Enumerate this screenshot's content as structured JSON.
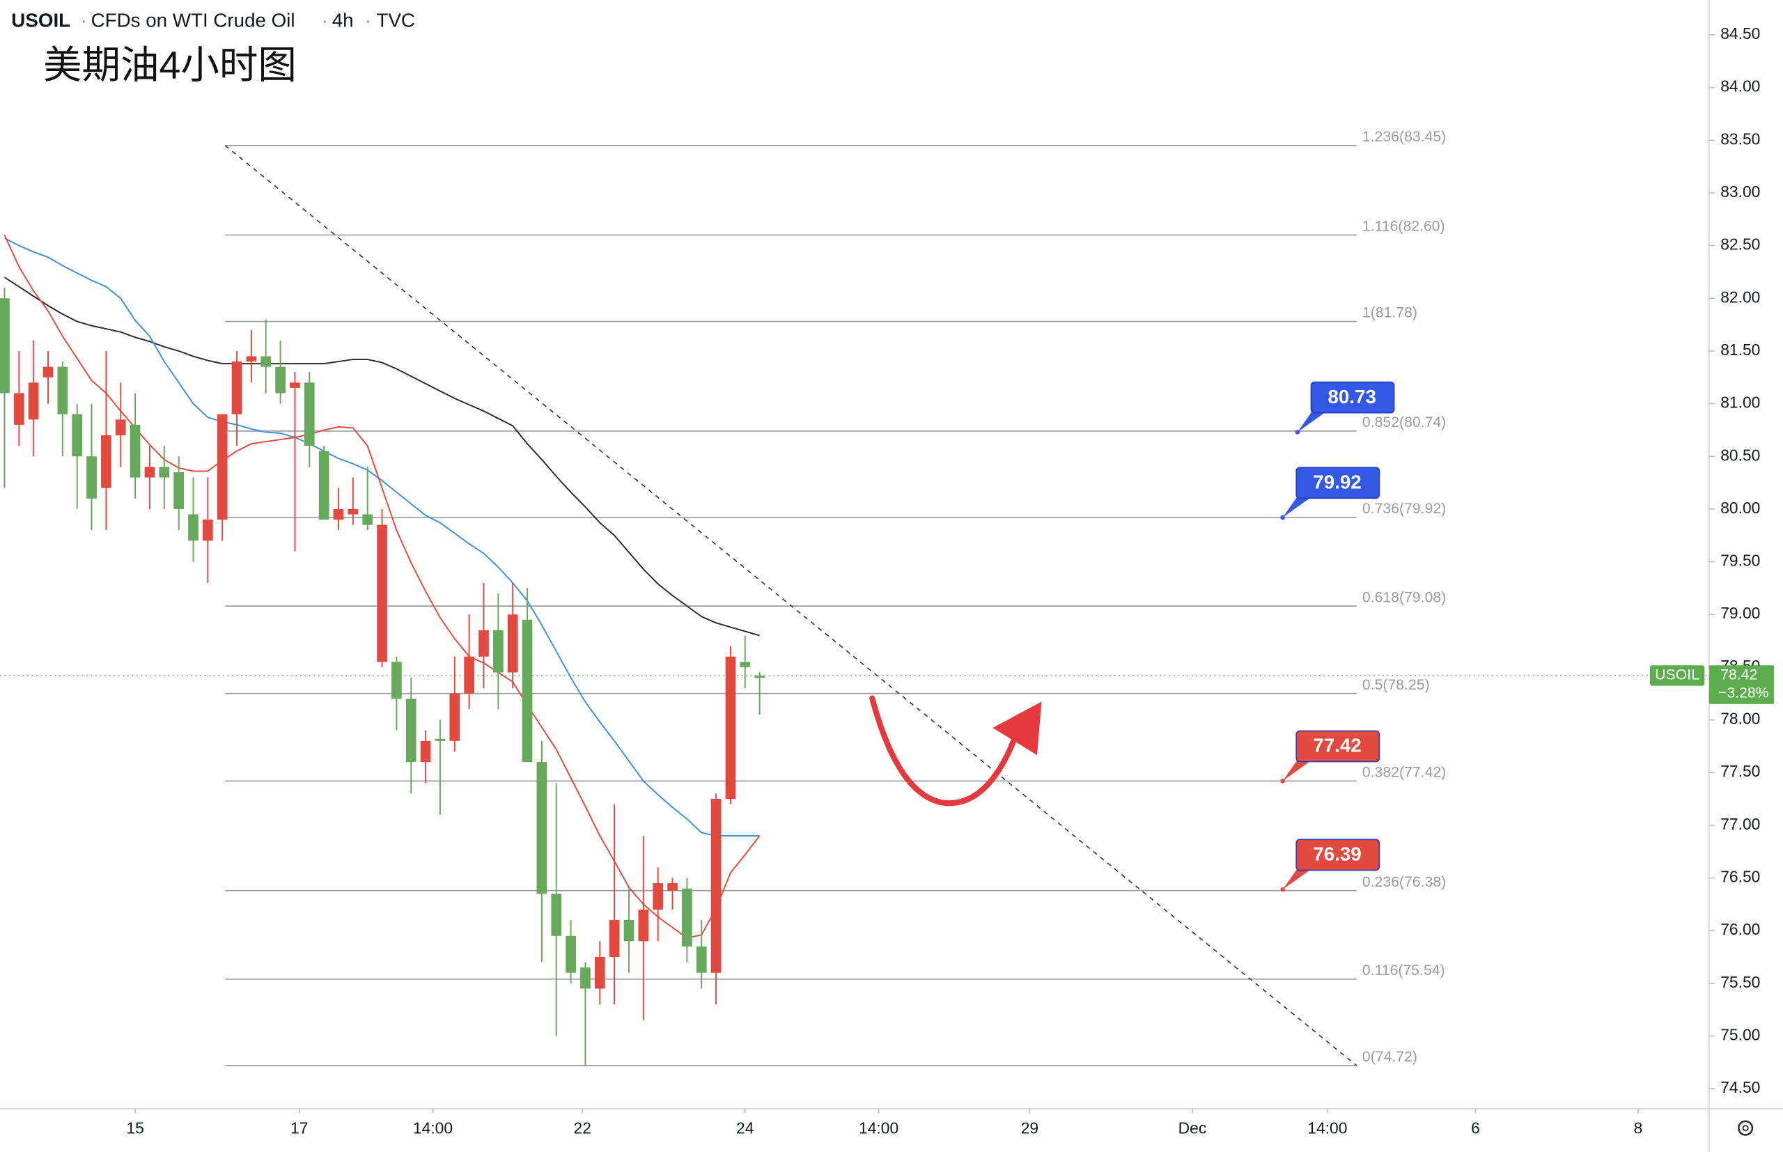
{
  "chart_data": {
    "type": "candlestick",
    "header": {
      "symbol": "USOIL",
      "separator": "·",
      "description": "CFDs on WTI Crude Oil",
      "interval": "4h",
      "source": "TVC"
    },
    "title": "美期油4小时图",
    "up_color": "#66a95a",
    "down_color": "#e34a3f",
    "open": [
      81.1,
      81.1,
      81.2,
      81.35,
      80.9,
      80.5,
      80.1,
      80.7,
      80.85,
      80.3,
      80.4,
      80.3,
      80.0,
      79.7,
      79.9,
      80.9,
      81.4,
      81.45,
      81.35,
      81.1,
      81.2,
      80.6,
      79.9,
      80.0,
      80.0,
      79.85,
      79.85,
      78.2,
      77.6,
      77.8,
      77.8,
      78.25,
      78.6,
      78.85,
      78.45,
      79.0,
      77.6,
      76.35,
      75.95,
      75.6,
      75.45,
      75.75,
      76.1,
      75.9,
      76.2,
      76.45,
      76.45,
      75.85,
      75.6,
      77.25,
      78.6,
      78.5,
      78.4
    ],
    "high": [
      82.1,
      81.5,
      81.6,
      81.5,
      81.4,
      81.0,
      81.0,
      81.5,
      81.2,
      81.1,
      80.6,
      80.6,
      80.5,
      80.3,
      80.3,
      80.9,
      81.5,
      81.7,
      81.8,
      81.6,
      81.3,
      81.3,
      80.6,
      80.2,
      80.3,
      80.4,
      80.0,
      78.6,
      78.4,
      77.9,
      78.0,
      78.6,
      79.0,
      79.3,
      79.2,
      79.3,
      79.25,
      77.8,
      77.4,
      76.1,
      75.7,
      75.9,
      77.2,
      76.4,
      76.9,
      76.6,
      76.5,
      76.5,
      76.1,
      77.3,
      78.7,
      78.8,
      78.45
    ],
    "low": [
      80.2,
      80.6,
      80.5,
      81.0,
      80.5,
      80.0,
      79.8,
      79.8,
      80.4,
      80.1,
      80.0,
      80.0,
      79.8,
      79.5,
      79.3,
      79.7,
      80.6,
      81.2,
      81.1,
      81.0,
      79.6,
      80.4,
      79.9,
      79.8,
      79.85,
      79.8,
      78.5,
      77.9,
      77.3,
      77.4,
      77.1,
      77.7,
      78.1,
      78.3,
      78.1,
      78.3,
      77.6,
      75.7,
      75.0,
      75.5,
      74.72,
      75.3,
      75.3,
      75.6,
      75.15,
      75.9,
      76.2,
      75.7,
      75.45,
      75.3,
      77.2,
      78.3,
      78.05
    ],
    "close": [
      82.0,
      80.8,
      80.85,
      81.25,
      81.35,
      80.9,
      80.5,
      80.2,
      80.7,
      80.8,
      80.3,
      80.4,
      80.35,
      79.95,
      79.7,
      79.9,
      80.9,
      81.4,
      81.45,
      81.35,
      81.15,
      81.2,
      80.55,
      79.9,
      79.95,
      79.95,
      78.55,
      78.55,
      78.2,
      77.6,
      77.82,
      77.8,
      78.25,
      78.6,
      78.85,
      78.45,
      78.95,
      77.6,
      76.35,
      75.95,
      75.65,
      75.45,
      75.75,
      76.1,
      75.9,
      76.2,
      76.38,
      76.4,
      75.85,
      75.6,
      77.25,
      78.55,
      78.42
    ],
    "series": [
      {
        "color": "#2b2b2b",
        "values": [
          82.2,
          82.11,
          82.02,
          81.93,
          81.85,
          81.78,
          81.74,
          81.71,
          81.68,
          81.63,
          81.59,
          81.54,
          81.5,
          81.45,
          81.41,
          81.38,
          81.38,
          81.38,
          81.38,
          81.38,
          81.38,
          81.38,
          81.38,
          81.4,
          81.42,
          81.42,
          81.39,
          81.33,
          81.26,
          81.19,
          81.12,
          81.05,
          80.99,
          80.93,
          80.86,
          80.79,
          80.62,
          80.47,
          80.31,
          80.16,
          80.02,
          79.87,
          79.75,
          79.59,
          79.43,
          79.29,
          79.18,
          79.08,
          78.98,
          78.92,
          78.88,
          78.84,
          78.8
        ]
      },
      {
        "color": "#3d8fe0",
        "values": [
          82.57,
          82.5,
          82.44,
          82.39,
          82.31,
          82.24,
          82.17,
          82.11,
          82.0,
          81.79,
          81.64,
          81.4,
          81.2,
          81.0,
          80.87,
          80.83,
          80.8,
          80.76,
          80.73,
          80.72,
          80.68,
          80.62,
          80.55,
          80.48,
          80.43,
          80.37,
          80.27,
          80.16,
          80.05,
          79.94,
          79.87,
          79.77,
          79.67,
          79.58,
          79.45,
          79.3,
          79.13,
          78.9,
          78.65,
          78.4,
          78.17,
          77.98,
          77.8,
          77.61,
          77.42,
          77.29,
          77.17,
          77.06,
          76.93,
          76.9,
          76.9,
          76.9,
          76.9
        ]
      },
      {
        "color": "#e34a3f",
        "values": [
          82.6,
          82.3,
          82.07,
          81.88,
          81.64,
          81.43,
          81.22,
          81.1,
          80.93,
          80.77,
          80.61,
          80.47,
          80.39,
          80.36,
          80.36,
          80.46,
          80.55,
          80.62,
          80.64,
          80.66,
          80.68,
          80.71,
          80.75,
          80.78,
          80.77,
          80.6,
          80.2,
          79.8,
          79.49,
          79.22,
          78.97,
          78.77,
          78.6,
          78.54,
          78.45,
          78.36,
          78.14,
          77.93,
          77.72,
          77.45,
          77.18,
          76.9,
          76.66,
          76.41,
          76.25,
          76.13,
          76.03,
          75.93,
          75.96,
          76.21,
          76.55,
          76.72,
          76.9
        ]
      }
    ],
    "fib_color": "#9a9a9a",
    "fib_levels": [
      {
        "value": 83.45,
        "label": "1.236(83.45)"
      },
      {
        "value": 82.6,
        "label": "1.116(82.60)"
      },
      {
        "value": 81.78,
        "label": "1(81.78)"
      },
      {
        "value": 80.74,
        "label": "0.852(80.74)"
      },
      {
        "value": 79.92,
        "label": "0.736(79.92)"
      },
      {
        "value": 79.08,
        "label": "0.618(79.08)"
      },
      {
        "value": 78.25,
        "label": "0.5(78.25)"
      },
      {
        "value": 77.42,
        "label": "0.382(77.42)"
      },
      {
        "value": 76.38,
        "label": "0.236(76.38)"
      },
      {
        "value": 75.54,
        "label": "0.116(75.54)"
      },
      {
        "value": 74.72,
        "label": "0(74.72)"
      }
    ],
    "callouts": [
      {
        "value": 80.73,
        "color": "#3458e6"
      },
      {
        "value": 79.92,
        "color": "#3458e6"
      },
      {
        "value": 77.42,
        "color": "#e34a3f"
      },
      {
        "value": 76.39,
        "color": "#e34a3f"
      }
    ],
    "last": {
      "label": "USOIL",
      "value": 78.42,
      "change": {
        "value": -3.28,
        "label": "−3.28%"
      },
      "color": "#5cad4e"
    },
    "ylim": [
      74.31,
      84.83
    ],
    "yticks": [
      {
        "value": 74.5,
        "label": "74.50"
      },
      {
        "value": 75,
        "label": "75.00"
      },
      {
        "value": 75.5,
        "label": "75.50"
      },
      {
        "value": 76,
        "label": "76.00"
      },
      {
        "value": 76.5,
        "label": "76.50"
      },
      {
        "value": 77,
        "label": "77.00"
      },
      {
        "value": 77.5,
        "label": "77.50"
      },
      {
        "value": 78,
        "label": "78.00"
      },
      {
        "value": 78.5,
        "label": "78.50"
      },
      {
        "value": 79,
        "label": "79.00"
      },
      {
        "value": 79.5,
        "label": "79.50"
      },
      {
        "value": 80,
        "label": "80.00"
      },
      {
        "value": 80.5,
        "label": "80.50"
      },
      {
        "value": 81,
        "label": "81.00"
      },
      {
        "value": 81.5,
        "label": "81.50"
      },
      {
        "value": 82,
        "label": "82.00"
      },
      {
        "value": 82.5,
        "label": "82.50"
      },
      {
        "value": 83,
        "label": "83.00"
      },
      {
        "value": 83.5,
        "label": "83.50"
      },
      {
        "value": 84,
        "label": "84.00"
      },
      {
        "value": 84.5,
        "label": "84.50"
      }
    ],
    "xlim": [
      -0.31,
      117.15
    ],
    "xticks": [
      {
        "value": 9.0,
        "label": "15"
      },
      {
        "value": 20.3,
        "label": "17"
      },
      {
        "value": 29.5,
        "label": "14:00"
      },
      {
        "value": 39.8,
        "label": "22"
      },
      {
        "value": 51.0,
        "label": "24"
      },
      {
        "value": 60.2,
        "label": "14:00"
      },
      {
        "value": 70.6,
        "label": "29"
      },
      {
        "value": 81.8,
        "label": "Dec"
      },
      {
        "value": 91.1,
        "label": "14:00"
      },
      {
        "value": 101.3,
        "label": "6"
      },
      {
        "value": 112.5,
        "label": "8"
      }
    ]
  }
}
